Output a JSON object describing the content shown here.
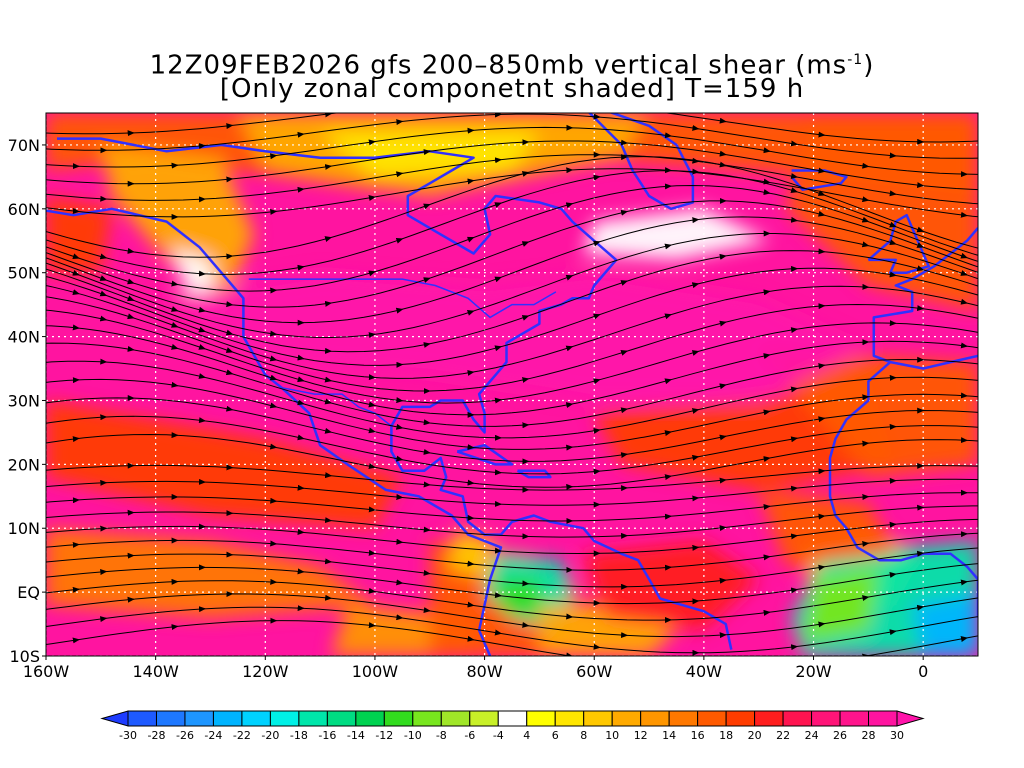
{
  "title": {
    "main": "12Z09FEB2026 gfs 200–850mb vertical shear (ms",
    "unit_sup": "-1",
    "close": ")",
    "subtitle": "[Only zonal componetnt shaded] T=159 h"
  },
  "map": {
    "lon_min": -160,
    "lon_max": 10,
    "lat_min": -10,
    "lat_max": 75,
    "lat_ticks": [
      {
        "value": 70,
        "label": "70N"
      },
      {
        "value": 60,
        "label": "60N"
      },
      {
        "value": 50,
        "label": "50N"
      },
      {
        "value": 40,
        "label": "40N"
      },
      {
        "value": 30,
        "label": "30N"
      },
      {
        "value": 20,
        "label": "20N"
      },
      {
        "value": 10,
        "label": "10N"
      },
      {
        "value": 0,
        "label": "EQ"
      },
      {
        "value": -10,
        "label": "10S"
      }
    ],
    "lon_ticks": [
      {
        "value": -160,
        "label": "160W"
      },
      {
        "value": -140,
        "label": "140W"
      },
      {
        "value": -120,
        "label": "120W"
      },
      {
        "value": -100,
        "label": "100W"
      },
      {
        "value": -80,
        "label": "80W"
      },
      {
        "value": -60,
        "label": "60W"
      },
      {
        "value": -40,
        "label": "40W"
      },
      {
        "value": -20,
        "label": "20W"
      },
      {
        "value": 0,
        "label": "0"
      }
    ],
    "coastline_color": "#3030ff",
    "streamline_color": "#000000"
  },
  "colorbar": {
    "labels": [
      "-30",
      "-28",
      "-26",
      "-24",
      "-22",
      "-20",
      "-18",
      "-16",
      "-14",
      "-12",
      "-10",
      "-8",
      "-6",
      "-4",
      "4",
      "6",
      "8",
      "10",
      "12",
      "14",
      "16",
      "18",
      "20",
      "22",
      "24",
      "26",
      "28",
      "30"
    ],
    "colors": [
      "#1e3cff",
      "#1e5aff",
      "#1e78ff",
      "#1e96ff",
      "#00b4ff",
      "#00d2ff",
      "#00f0e6",
      "#00e6aa",
      "#00dc82",
      "#00d250",
      "#32dc1e",
      "#78e61e",
      "#a0e628",
      "#c8f028",
      "#ffffff",
      "#ffff00",
      "#ffe600",
      "#ffc800",
      "#ffaa00",
      "#ff9600",
      "#ff7800",
      "#ff5a00",
      "#ff3c00",
      "#ff1e1e",
      "#ff1450",
      "#ff1478",
      "#ff148c",
      "#ff14a0",
      "#ff14aa"
    ]
  }
}
